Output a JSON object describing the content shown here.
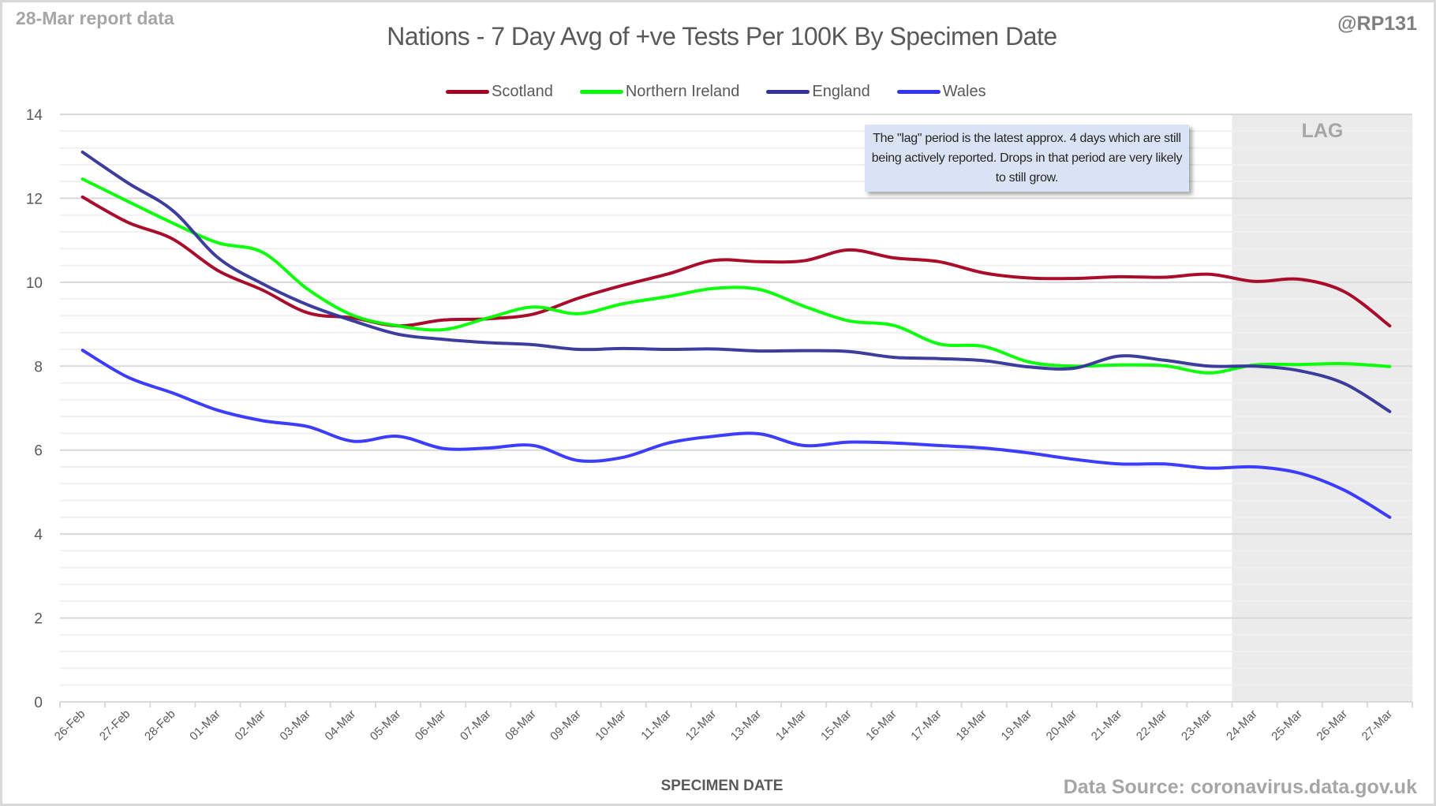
{
  "header": {
    "report_label": "28-Mar report data",
    "handle": "@RP131",
    "source": "Data Source: coronavirus.data.gov.uk"
  },
  "annotation": {
    "lag_label": "LAG",
    "note": "The \"lag\" period is the latest approx. 4 days which are still being actively reported. Drops in that period are very likely to still grow."
  },
  "chart_data": {
    "type": "line",
    "title": "Nations - 7 Day Avg of +ve Tests Per 100K By Specimen Date",
    "xlabel": "SPECIMEN DATE",
    "ylabel": "",
    "ylim": [
      0,
      14
    ],
    "yticks": [
      "0",
      "2",
      "4",
      "6",
      "8",
      "10",
      "12",
      "14"
    ],
    "grid": true,
    "legend_position": "top",
    "lag_period_start": "24-Mar",
    "lag_period_end": "27-Mar",
    "categories": [
      "26-Feb",
      "27-Feb",
      "28-Feb",
      "01-Mar",
      "02-Mar",
      "03-Mar",
      "04-Mar",
      "05-Mar",
      "06-Mar",
      "07-Mar",
      "08-Mar",
      "09-Mar",
      "10-Mar",
      "11-Mar",
      "12-Mar",
      "13-Mar",
      "14-Mar",
      "15-Mar",
      "16-Mar",
      "17-Mar",
      "18-Mar",
      "19-Mar",
      "20-Mar",
      "21-Mar",
      "22-Mar",
      "23-Mar",
      "24-Mar",
      "25-Mar",
      "26-Mar",
      "27-Mar"
    ],
    "series": [
      {
        "name": "Scotland",
        "color": "#a50021",
        "values": [
          12.03,
          11.43,
          11.03,
          10.28,
          9.81,
          9.27,
          9.15,
          8.96,
          9.1,
          9.13,
          9.24,
          9.62,
          9.93,
          10.2,
          10.52,
          10.49,
          10.51,
          10.77,
          10.58,
          10.49,
          10.22,
          10.1,
          10.09,
          10.13,
          10.12,
          10.19,
          10.02,
          10.07,
          9.77,
          8.96
        ]
      },
      {
        "name": "Northern Ireland",
        "color": "#00ff00",
        "values": [
          12.46,
          11.93,
          11.41,
          10.94,
          10.71,
          9.83,
          9.21,
          8.96,
          8.87,
          9.15,
          9.41,
          9.25,
          9.49,
          9.66,
          9.85,
          9.83,
          9.43,
          9.08,
          8.97,
          8.53,
          8.47,
          8.1,
          8.0,
          8.03,
          8.01,
          7.84,
          8.03,
          8.04,
          8.06,
          7.99
        ]
      },
      {
        "name": "England",
        "color": "#333399",
        "values": [
          13.1,
          12.37,
          11.71,
          10.59,
          9.96,
          9.46,
          9.08,
          8.76,
          8.64,
          8.56,
          8.51,
          8.4,
          8.42,
          8.4,
          8.41,
          8.36,
          8.37,
          8.35,
          8.21,
          8.18,
          8.13,
          7.98,
          7.95,
          8.24,
          8.14,
          8.0,
          8.0,
          7.89,
          7.58,
          6.92
        ]
      },
      {
        "name": "Wales",
        "color": "#3333ff",
        "values": [
          8.38,
          7.74,
          7.36,
          6.95,
          6.7,
          6.56,
          6.21,
          6.33,
          6.04,
          6.05,
          6.11,
          5.75,
          5.83,
          6.17,
          6.33,
          6.39,
          6.11,
          6.19,
          6.17,
          6.11,
          6.05,
          5.93,
          5.78,
          5.67,
          5.67,
          5.57,
          5.6,
          5.45,
          5.04,
          4.4
        ]
      }
    ]
  }
}
